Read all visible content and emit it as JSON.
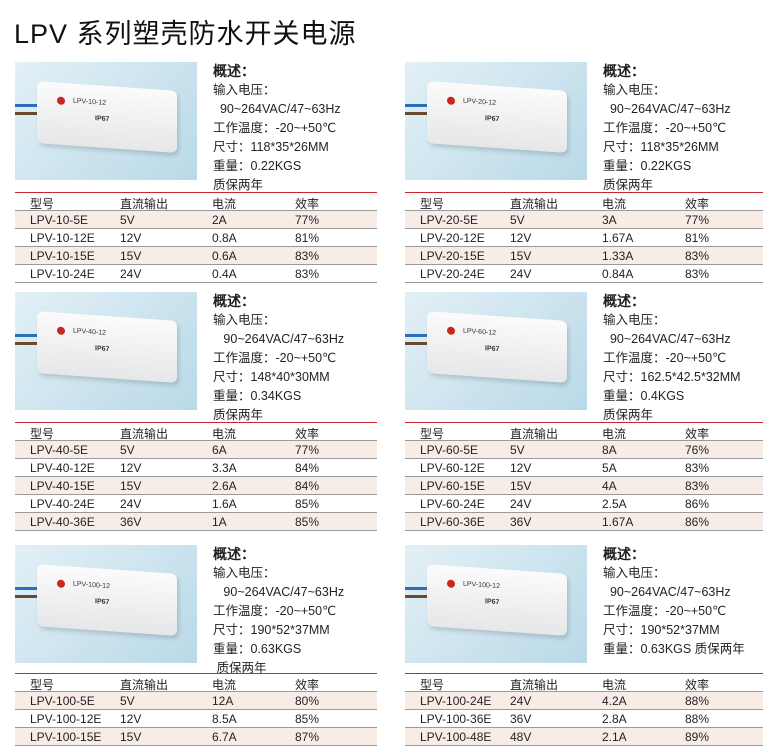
{
  "title": "LPV 系列塑壳防水开关电源",
  "table_headers": [
    "型号",
    "直流输出",
    "电流",
    "效率"
  ],
  "sections": [
    {
      "image_label": "LPV-10-12",
      "image_ip": "IP67",
      "overview": "概述：",
      "specs": [
        "输入电压：",
        "  90~264VAC/47~63Hz",
        "工作温度：-20~+50℃",
        "尺寸：118*35*26MM",
        "重量：0.22KGS",
        "质保两年"
      ],
      "rows": [
        [
          "LPV-10-5E",
          "5V",
          "2A",
          "77%"
        ],
        [
          "LPV-10-12E",
          "12V",
          "0.8A",
          "81%"
        ],
        [
          "LPV-10-15E",
          "15V",
          "0.6A",
          "83%"
        ],
        [
          "LPV-10-24E",
          "24V",
          "0.4A",
          "83%"
        ]
      ]
    },
    {
      "image_label": "LPV-20-12",
      "image_ip": "IP67",
      "overview": "概述：",
      "specs": [
        "输入电压：",
        "  90~264VAC/47~63Hz",
        "工作温度：-20~+50℃",
        "尺寸：118*35*26MM",
        "重量：0.22KGS",
        "质保两年"
      ],
      "rows": [
        [
          "LPV-20-5E",
          "5V",
          "3A",
          "77%"
        ],
        [
          "LPV-20-12E",
          "12V",
          "1.67A",
          "81%"
        ],
        [
          "LPV-20-15E",
          "15V",
          "1.33A",
          "83%"
        ],
        [
          "LPV-20-24E",
          "24V",
          "0.84A",
          "83%"
        ]
      ]
    },
    {
      "image_label": "LPV-40-12",
      "image_ip": "IP67",
      "overview": "概述：",
      "specs": [
        "输入电压：",
        "   90~264VAC/47~63Hz",
        "工作温度：-20~+50℃",
        "尺寸：148*40*30MM",
        "重量：0.34KGS",
        "质保两年"
      ],
      "rows": [
        [
          "LPV-40-5E",
          "5V",
          "6A",
          "77%"
        ],
        [
          "LPV-40-12E",
          "12V",
          "3.3A",
          "84%"
        ],
        [
          "LPV-40-15E",
          "15V",
          "2.6A",
          "84%"
        ],
        [
          "LPV-40-24E",
          "24V",
          "1.6A",
          "85%"
        ],
        [
          "LPV-40-36E",
          "36V",
          "1A",
          "85%"
        ]
      ]
    },
    {
      "image_label": "LPV-60-12",
      "image_ip": "IP67",
      "overview": "概述：",
      "specs": [
        "输入电压：",
        "  90~264VAC/47~63Hz",
        "工作温度：-20~+50℃",
        "尺寸：162.5*42.5*32MM",
        "重量：0.4KGS",
        "质保两年"
      ],
      "rows": [
        [
          "LPV-60-5E",
          "5V",
          "8A",
          "76%"
        ],
        [
          "LPV-60-12E",
          "12V",
          "5A",
          "83%"
        ],
        [
          "LPV-60-15E",
          "15V",
          "4A",
          "83%"
        ],
        [
          "LPV-60-24E",
          "24V",
          "2.5A",
          "86%"
        ],
        [
          "LPV-60-36E",
          "36V",
          "1.67A",
          "86%"
        ]
      ]
    },
    {
      "image_label": "LPV-100-12",
      "image_ip": "IP67",
      "overview": "概述：",
      "specs": [
        "输入电压：",
        "   90~264VAC/47~63Hz",
        "工作温度：-20~+50℃",
        "尺寸：190*52*37MM",
        "重量：0.63KGS",
        " 质保两年"
      ],
      "rows": [
        [
          "LPV-100-5E",
          "5V",
          "12A",
          "80%"
        ],
        [
          "LPV-100-12E",
          "12V",
          "8.5A",
          "85%"
        ],
        [
          "LPV-100-15E",
          "15V",
          "6.7A",
          "87%"
        ]
      ]
    },
    {
      "image_label": "LPV-100-12",
      "image_ip": "IP67",
      "overview": "概述：",
      "specs": [
        "输入电压：",
        "  90~264VAC/47~63Hz",
        "工作温度：-20~+50℃",
        "尺寸：190*52*37MM",
        "重量：0.63KGS 质保两年"
      ],
      "rows": [
        [
          "LPV-100-24E",
          "24V",
          "4.2A",
          "88%"
        ],
        [
          "LPV-100-36E",
          "36V",
          "2.8A",
          "88%"
        ],
        [
          "LPV-100-48E",
          "48V",
          "2.1A",
          "89%"
        ]
      ]
    }
  ]
}
